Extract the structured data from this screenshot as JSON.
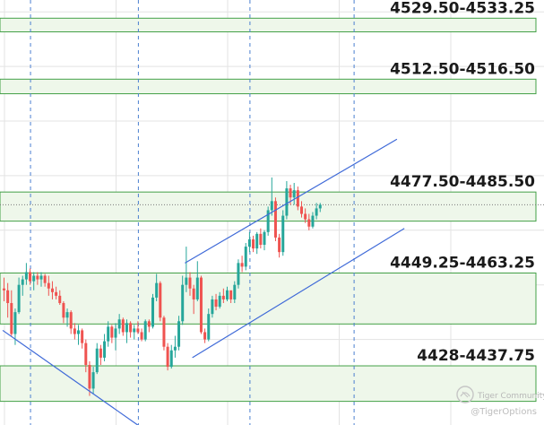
{
  "chart_data": {
    "type": "candlestick",
    "price_range": [
      4421.5,
      4538.25
    ],
    "colors": {
      "up": "#26a69a",
      "down": "#ef5350",
      "zone_fill": "#eef7ea",
      "zone_border": "#43a047",
      "channel": "#3f6ad8",
      "time_divider": "#4a7fd0",
      "grid": "#e3e3e3"
    },
    "zones": [
      {
        "label": "4529.50-4533.25",
        "low": 4529.5,
        "high": 4533.25
      },
      {
        "label": "4512.50-4516.50",
        "low": 4512.5,
        "high": 4516.5
      },
      {
        "label": "4477.50-4485.50",
        "low": 4477.5,
        "high": 4485.5
      },
      {
        "label": "4449.25-4463.25",
        "low": 4449.25,
        "high": 4463.25
      },
      {
        "label": "4428-4437.75",
        "low": 4428,
        "high": 4437.75
      }
    ],
    "candles": [
      [
        4459.0,
        4462.0,
        4455.5,
        4458.5
      ],
      [
        4458.5,
        4460.5,
        4451.0,
        4455.0
      ],
      [
        4455.0,
        4458.5,
        4446.0,
        4446.5
      ],
      [
        4446.5,
        4453.5,
        4443.5,
        4452.5
      ],
      [
        4452.5,
        4462.0,
        4452.0,
        4460.0
      ],
      [
        4460.0,
        4462.5,
        4457.0,
        4461.5
      ],
      [
        4461.5,
        4466.0,
        4460.0,
        4463.5
      ],
      [
        4463.5,
        4464.5,
        4460.0,
        4461.0
      ],
      [
        4461.0,
        4463.5,
        4458.5,
        4462.5
      ],
      [
        4462.5,
        4463.5,
        4460.0,
        4461.5
      ],
      [
        4461.5,
        4463.5,
        4459.5,
        4462.5
      ],
      [
        4462.5,
        4463.0,
        4459.5,
        4460.5
      ],
      [
        4460.5,
        4462.5,
        4457.0,
        4459.0
      ],
      [
        4459.0,
        4461.0,
        4456.0,
        4458.0
      ],
      [
        4458.0,
        4459.5,
        4456.0,
        4457.0
      ],
      [
        4457.0,
        4458.5,
        4454.5,
        4455.0
      ],
      [
        4455.0,
        4455.5,
        4449.5,
        4451.0
      ],
      [
        4451.0,
        4453.5,
        4448.5,
        4452.5
      ],
      [
        4452.5,
        4453.0,
        4446.5,
        4448.0
      ],
      [
        4448.0,
        4449.5,
        4445.0,
        4446.5
      ],
      [
        4446.5,
        4449.0,
        4443.5,
        4447.5
      ],
      [
        4447.5,
        4448.0,
        4442.5,
        4444.0
      ],
      [
        4444.0,
        4445.0,
        4436.0,
        4438.0
      ],
      [
        4438.0,
        4439.0,
        4429.5,
        4431.5
      ],
      [
        4431.5,
        4437.5,
        4430.0,
        4436.0
      ],
      [
        4436.0,
        4444.0,
        4435.5,
        4442.5
      ],
      [
        4442.5,
        4443.5,
        4438.0,
        4440.0
      ],
      [
        4440.0,
        4446.5,
        4439.0,
        4444.5
      ],
      [
        4444.5,
        4450.0,
        4443.0,
        4448.5
      ],
      [
        4448.5,
        4449.0,
        4444.0,
        4445.5
      ],
      [
        4445.5,
        4449.5,
        4442.0,
        4448.0
      ],
      [
        4448.0,
        4452.0,
        4446.5,
        4450.5
      ],
      [
        4450.5,
        4451.0,
        4446.0,
        4447.0
      ],
      [
        4447.0,
        4450.5,
        4444.0,
        4449.5
      ],
      [
        4449.5,
        4450.0,
        4445.5,
        4447.0
      ],
      [
        4447.0,
        4449.0,
        4445.0,
        4448.0
      ],
      [
        4448.0,
        4450.0,
        4446.5,
        4447.0
      ],
      [
        4447.0,
        4448.0,
        4444.5,
        4445.0
      ],
      [
        4445.0,
        4450.5,
        4444.5,
        4450.0
      ],
      [
        4450.0,
        4450.5,
        4447.0,
        4448.5
      ],
      [
        4448.5,
        4457.5,
        4448.0,
        4456.5
      ],
      [
        4456.5,
        4463.0,
        4455.5,
        4460.5
      ],
      [
        4460.5,
        4461.0,
        4450.0,
        4451.0
      ],
      [
        4451.0,
        4451.5,
        4442.0,
        4443.0
      ],
      [
        4443.0,
        4444.0,
        4436.5,
        4437.5
      ],
      [
        4437.5,
        4443.5,
        4437.0,
        4442.0
      ],
      [
        4442.0,
        4446.0,
        4440.0,
        4443.0
      ],
      [
        4443.0,
        4451.5,
        4442.0,
        4450.0
      ],
      [
        4450.0,
        4462.5,
        4449.0,
        4460.0
      ],
      [
        4460.0,
        4470.5,
        4458.0,
        4462.0
      ],
      [
        4462.0,
        4463.5,
        4457.0,
        4459.0
      ],
      [
        4459.0,
        4460.0,
        4452.0,
        4456.0
      ],
      [
        4456.0,
        4466.5,
        4455.5,
        4462.0
      ],
      [
        4462.0,
        4462.5,
        4446.5,
        4447.0
      ],
      [
        4447.0,
        4448.0,
        4444.0,
        4445.0
      ],
      [
        4445.0,
        4453.5,
        4444.5,
        4452.0
      ],
      [
        4452.0,
        4457.0,
        4451.0,
        4456.0
      ],
      [
        4456.0,
        4457.5,
        4453.0,
        4454.0
      ],
      [
        4454.0,
        4458.0,
        4453.5,
        4457.0
      ],
      [
        4457.0,
        4459.0,
        4455.0,
        4456.0
      ],
      [
        4456.0,
        4459.5,
        4455.5,
        4458.5
      ],
      [
        4458.5,
        4458.0,
        4455.0,
        4456.0
      ],
      [
        4456.0,
        4461.0,
        4455.0,
        4460.0
      ],
      [
        4460.0,
        4467.0,
        4459.0,
        4466.0
      ],
      [
        4466.0,
        4468.0,
        4463.5,
        4465.0
      ],
      [
        4465.0,
        4471.5,
        4464.0,
        4470.5
      ],
      [
        4470.5,
        4474.5,
        4469.0,
        4472.5
      ],
      [
        4472.5,
        4473.5,
        4469.0,
        4470.0
      ],
      [
        4470.0,
        4474.5,
        4468.5,
        4474.0
      ],
      [
        4474.0,
        4475.5,
        4470.0,
        4471.0
      ],
      [
        4471.0,
        4475.0,
        4469.5,
        4474.5
      ],
      [
        4474.5,
        4481.5,
        4473.5,
        4480.5
      ],
      [
        4480.5,
        4489.5,
        4479.0,
        4483.0
      ],
      [
        4483.0,
        4484.0,
        4472.0,
        4473.0
      ],
      [
        4473.0,
        4474.0,
        4467.5,
        4469.0
      ],
      [
        4469.0,
        4480.5,
        4468.0,
        4479.0
      ],
      [
        4479.0,
        4488.5,
        4478.0,
        4486.5
      ],
      [
        4486.5,
        4487.5,
        4482.0,
        4484.0
      ],
      [
        4484.0,
        4488.0,
        4482.0,
        4486.0
      ],
      [
        4486.0,
        4487.0,
        4480.5,
        4481.5
      ],
      [
        4481.5,
        4483.0,
        4478.5,
        4479.5
      ],
      [
        4479.5,
        4481.0,
        4477.0,
        4478.0
      ],
      [
        4478.0,
        4479.5,
        4475.0,
        4476.0
      ],
      [
        4476.0,
        4480.0,
        4475.5,
        4479.0
      ],
      [
        4479.0,
        4482.5,
        4478.0,
        4481.0
      ],
      [
        4481.0,
        4482.5,
        4480.0,
        4482.0
      ]
    ],
    "channels": [
      {
        "name": "lower-left",
        "points": [
          [
            0,
            4447.5
          ],
          [
            37,
            4421.0
          ]
        ]
      },
      {
        "name": "upper",
        "points": [
          [
            49,
            4466.0
          ],
          [
            106,
            4500.0
          ]
        ]
      },
      {
        "name": "lower",
        "points": [
          [
            51,
            4440.0
          ],
          [
            108,
            4475.5
          ]
        ]
      }
    ],
    "time_dividers": [
      7,
      36,
      66,
      94
    ],
    "last_price": 4482.0,
    "watermark": {
      "brand": "Tiger Community",
      "handle": "@TigerOptions"
    }
  }
}
